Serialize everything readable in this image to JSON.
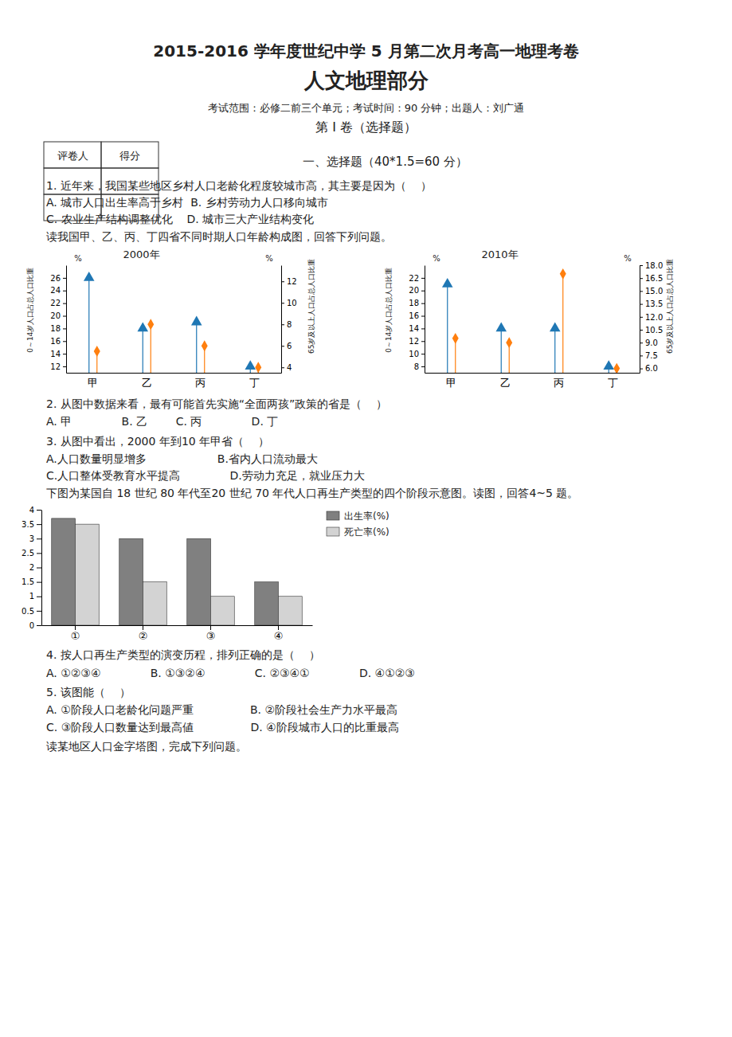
{
  "title": "2015-2016 学年度世纪中学 5 月第二次月考高一地理考卷",
  "subtitle": "人文地理部分",
  "annotations": [
    "考试范围：必修二前三个单元；考试时间：90 分钟；出题人：刘广通",
    "第 I 卷（选择题）",
    "一、选择题（40*1.5=60 分）"
  ],
  "table_headers": [
    "评卷人",
    "得分"
  ],
  "text_blocks": [
    [
      "1. 近年来，我国某些地区乡村人口老龄化程度较城市高，其主要是因为（    ）",
      "A. 城市人口出生率高于乡村  B. 乡村劳动力人口移向城市",
      "C. 农业生产结构调整优化    D. 城市三大产业结构变化",
      "读我国甲、乙、丙、丁四省不同时期人口年龄构成图，回答下列问题。"
    ],
    [
      "2. 从图中数据来看，最有可能首先实施“全面两孩”政策的省是（    ）",
      "A. 甲              B. 乙        C. 丙              D. 丁",
      "3. 从图中看出，2000 年到10 年甲省（    ）",
      "A.人口数量明显增多                    B.省内人口流动最大",
      "C.人口整体受教育水平提高              D.劳动力充足，就业压力大",
      "下图为某国自 18 世纪 80 年代至20 世纪 70 年代人口再生产类型的四个阶段示意图。读图，回答4~5 题。"
    ],
    [
      "4. 按人口再生产类型的演变历程，排列正确的是（    ）",
      "A. ①②③④              B. ①③②④              C. ②③④①              D. ④①②③",
      "5. 该图能（    ）",
      "A. ①阶段人口老龄化问题严重                B. ②阶段社会生产力水平最高",
      "C. ③阶段人口数量达到最高値                D. ④阶段城市人口的比重最高",
      "读某地区人口金字塔图，完成下列问题。"
    ]
  ],
  "chart_data": [
    {
      "type": "lollipop",
      "title": "2000年",
      "ylabel": "0～14岁人口占总人口比重",
      "y2label": "65岁及以上人口占总人口比重",
      "annotations": [
        "%",
        "%"
      ],
      "categories": [
        "甲",
        "乙",
        "丙",
        "丁"
      ],
      "series": [
        {
          "values": [
            26,
            18,
            19,
            12
          ],
          "marker": "triangle"
        },
        {
          "values": [
            5.5,
            8.0,
            6.0,
            4.0
          ],
          "marker": "diamond",
          "axis": "y2"
        }
      ],
      "ylim": [
        11,
        28
      ],
      "yticks": [
        12,
        14,
        16,
        18,
        20,
        22,
        24,
        26
      ],
      "y2lim": [
        3.5,
        13.5
      ],
      "y2ticks": [
        4,
        6,
        8,
        10,
        12
      ],
      "grid": false
    },
    {
      "type": "lollipop",
      "title": "2010年",
      "ylabel": "0～14岁人口占总人口比重",
      "y2label": "65岁及以上人口占总人口比重",
      "annotations": [
        "%",
        "%"
      ],
      "categories": [
        "甲",
        "乙",
        "丙",
        "丁"
      ],
      "series": [
        {
          "values": [
            21,
            14,
            14,
            8
          ],
          "marker": "triangle"
        },
        {
          "values": [
            9.5,
            9.0,
            17.0,
            6.0
          ],
          "marker": "diamond",
          "axis": "y2"
        }
      ],
      "ylim": [
        7,
        24
      ],
      "yticks": [
        8,
        10,
        12,
        14,
        16,
        18,
        20,
        22
      ],
      "y2lim": [
        5.5,
        18
      ],
      "y2ticks": [
        {
          "value": 6,
          "label": "6.0"
        },
        7.5,
        {
          "value": 9,
          "label": "9.0"
        },
        10.5,
        {
          "value": 12,
          "label": "12.0"
        },
        13.5,
        {
          "value": 15,
          "label": "15.0"
        },
        16.5,
        {
          "value": 18,
          "label": "18.0"
        }
      ],
      "grid": false
    },
    {
      "type": "bar",
      "categories": [
        "①",
        "②",
        "③",
        "④"
      ],
      "series": [
        {
          "name": "出生率(%)",
          "color": "#808080",
          "values": [
            3.7,
            3.0,
            3.0,
            1.5
          ]
        },
        {
          "name": "死亡率(%)",
          "color": "#d3d3d3",
          "values": [
            3.5,
            1.5,
            1.0,
            1.0
          ]
        }
      ],
      "ylim": [
        0,
        4.0
      ],
      "yticks": [
        0,
        0.5,
        1,
        1.5,
        2,
        2.5,
        3,
        3.5,
        4
      ],
      "legend": "right",
      "grid": false
    }
  ]
}
